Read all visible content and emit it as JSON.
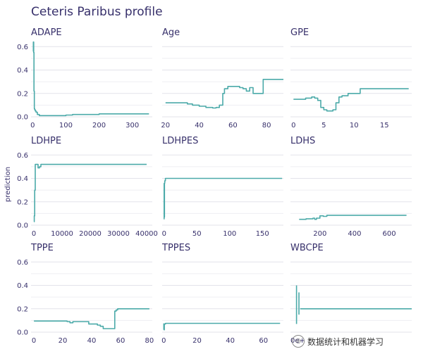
{
  "chart_data": {
    "type": "line",
    "title": "Ceteris Paribus profile",
    "ylabel": "prediction",
    "ylim": [
      0,
      0.65
    ],
    "yticks": [
      0.0,
      0.2,
      0.4,
      0.6
    ],
    "series_color": "#4baaa9",
    "panels": [
      {
        "name": "ADAPE",
        "xlim": [
          -5,
          360
        ],
        "xticks": [
          0,
          100,
          200,
          300
        ],
        "x": [
          1,
          2,
          3,
          4,
          5,
          6,
          8,
          10,
          14,
          20,
          30,
          50,
          80,
          100,
          120,
          150,
          200,
          250,
          300,
          350
        ],
        "y": [
          0.56,
          0.64,
          0.55,
          0.22,
          0.07,
          0.06,
          0.05,
          0.04,
          0.02,
          0.01,
          0.01,
          0.01,
          0.01,
          0.015,
          0.02,
          0.02,
          0.025,
          0.025,
          0.025,
          0.025
        ]
      },
      {
        "name": "Age",
        "xlim": [
          18,
          90
        ],
        "xticks": [
          20,
          40,
          60,
          80
        ],
        "x": [
          20,
          25,
          30,
          33,
          36,
          40,
          44,
          48,
          50,
          52,
          54,
          55,
          57,
          60,
          64,
          66,
          68,
          70,
          72,
          74,
          76,
          78,
          80,
          85,
          90
        ],
        "y": [
          0.12,
          0.12,
          0.12,
          0.11,
          0.1,
          0.09,
          0.08,
          0.075,
          0.08,
          0.1,
          0.2,
          0.24,
          0.26,
          0.26,
          0.25,
          0.24,
          0.22,
          0.25,
          0.2,
          0.2,
          0.2,
          0.32,
          0.32,
          0.32,
          0.32
        ]
      },
      {
        "name": "GPE",
        "xlim": [
          -0.5,
          19.5
        ],
        "xticks": [
          0,
          5,
          10,
          15
        ],
        "x": [
          0,
          1,
          2,
          3,
          3.5,
          4,
          4.5,
          5,
          5.5,
          6,
          6.5,
          7,
          7.5,
          8,
          9,
          10,
          11,
          12,
          13,
          15,
          17,
          19
        ],
        "y": [
          0.15,
          0.15,
          0.16,
          0.17,
          0.16,
          0.14,
          0.08,
          0.06,
          0.05,
          0.05,
          0.06,
          0.12,
          0.17,
          0.18,
          0.2,
          0.2,
          0.24,
          0.24,
          0.24,
          0.24,
          0.24,
          0.24
        ]
      },
      {
        "name": "LDHPE",
        "xlim": [
          -1000,
          42000
        ],
        "xticks": [
          0,
          10000,
          20000,
          30000,
          40000
        ],
        "x": [
          0,
          150,
          300,
          500,
          1000,
          1500,
          2000,
          2500,
          3000,
          4000,
          10000,
          20000,
          30000,
          40000
        ],
        "y": [
          0.03,
          0.08,
          0.3,
          0.52,
          0.52,
          0.49,
          0.5,
          0.52,
          0.52,
          0.52,
          0.52,
          0.52,
          0.52,
          0.52
        ]
      },
      {
        "name": "LDHPES",
        "xlim": [
          -3,
          182
        ],
        "xticks": [
          0,
          50,
          100,
          150
        ],
        "x": [
          0,
          0.5,
          1,
          2,
          3,
          5,
          50,
          100,
          150,
          180
        ],
        "y": [
          0.07,
          0.36,
          0.38,
          0.4,
          0.4,
          0.4,
          0.4,
          0.4,
          0.4,
          0.4
        ],
        "lines": [
          [
            [
              0,
              0.05
            ],
            [
              0,
              0.36
            ]
          ]
        ]
      },
      {
        "name": "LDHS",
        "xlim": [
          30,
          730
        ],
        "xticks": [
          200,
          400,
          600
        ],
        "x": [
          80,
          100,
          120,
          140,
          160,
          170,
          180,
          190,
          200,
          220,
          240,
          300,
          400,
          500,
          600,
          700
        ],
        "y": [
          0.05,
          0.05,
          0.055,
          0.055,
          0.06,
          0.05,
          0.06,
          0.06,
          0.08,
          0.075,
          0.085,
          0.085,
          0.085,
          0.085,
          0.085,
          0.085
        ]
      },
      {
        "name": "TPPE",
        "xlim": [
          -2,
          82
        ],
        "xticks": [
          0,
          20,
          40,
          60,
          80
        ],
        "x": [
          0,
          10,
          20,
          23,
          25,
          27,
          30,
          34,
          36,
          38,
          40,
          44,
          46,
          48,
          50,
          55,
          56,
          57,
          58,
          62,
          70,
          80
        ],
        "y": [
          0.095,
          0.095,
          0.095,
          0.09,
          0.08,
          0.09,
          0.09,
          0.09,
          0.09,
          0.07,
          0.07,
          0.06,
          0.05,
          0.03,
          0.03,
          0.03,
          0.18,
          0.19,
          0.2,
          0.2,
          0.2,
          0.2
        ]
      },
      {
        "name": "TPPES",
        "xlim": [
          -1,
          72
        ],
        "xticks": [
          0,
          20,
          40,
          60
        ],
        "x": [
          0,
          0.3,
          1,
          5,
          20,
          40,
          60,
          70
        ],
        "y": [
          0.02,
          0.07,
          0.075,
          0.075,
          0.075,
          0.075,
          0.075,
          0.075
        ],
        "lines": [
          [
            [
              0,
              0.02
            ],
            [
              0,
              0.075
            ]
          ]
        ]
      },
      {
        "name": "WBCPE",
        "xlim": [
          0,
          100
        ],
        "xticks_labels": [
          {
            "x": 0,
            "label": "0e+"
          }
        ],
        "x": [
          8,
          10,
          100
        ],
        "y": [
          0.2,
          0.2,
          0.2
        ],
        "lines": [
          [
            [
              5,
              0.07
            ],
            [
              5,
              0.4
            ]
          ],
          [
            [
              7,
              0.15
            ],
            [
              7,
              0.34
            ]
          ]
        ]
      }
    ]
  },
  "watermark": {
    "text": "数据统计和机器学习",
    "icon": "wechat-icon"
  }
}
